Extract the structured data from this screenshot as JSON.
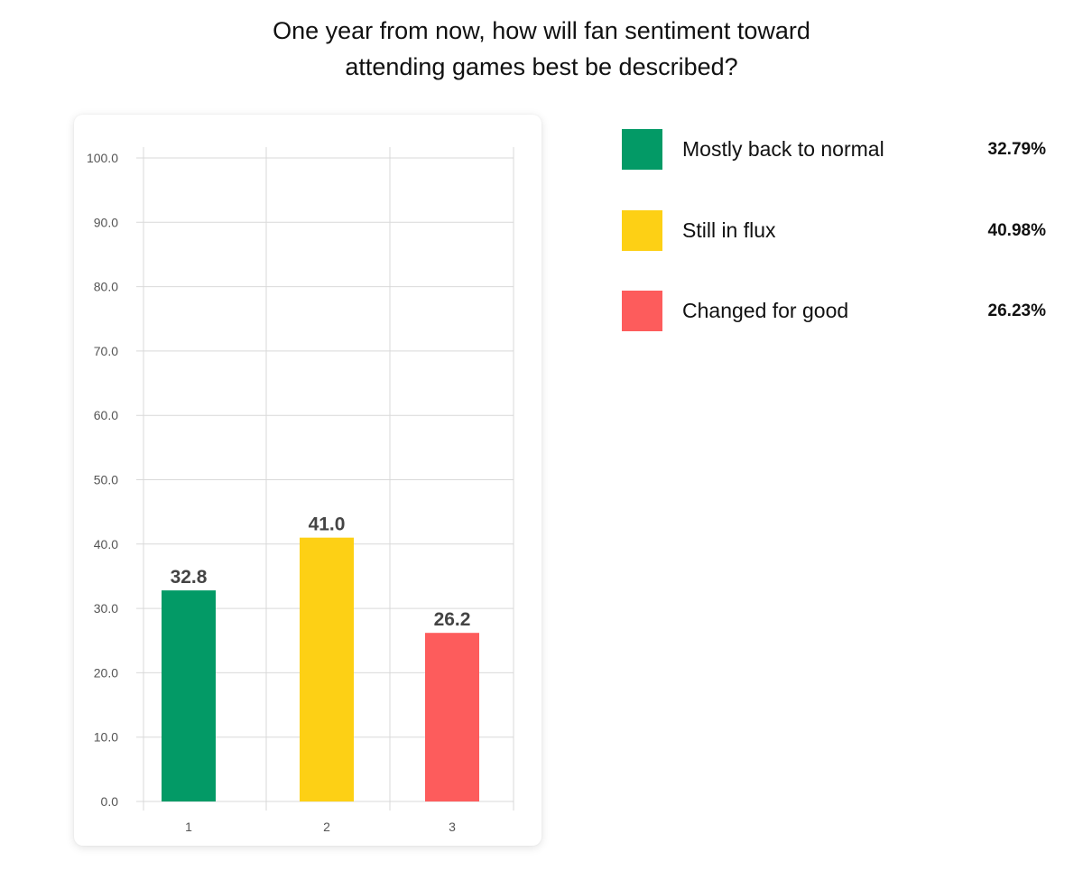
{
  "title": {
    "line1": "One year from now, how will fan sentiment toward",
    "line2": "attending games best be described?"
  },
  "legend": [
    {
      "label": "Mostly back to normal",
      "percent": "32.79%",
      "color": "#039A66"
    },
    {
      "label": "Still in flux",
      "percent": "40.98%",
      "color": "#FDD015"
    },
    {
      "label": "Changed for good",
      "percent": "26.23%",
      "color": "#FD5C5C"
    }
  ],
  "chart_data": {
    "type": "bar",
    "categories": [
      "1",
      "2",
      "3"
    ],
    "values": [
      32.8,
      41.0,
      26.2
    ],
    "value_labels": [
      "32.8",
      "41.0",
      "26.2"
    ],
    "colors": [
      "#039A66",
      "#FDD015",
      "#FD5C5C"
    ],
    "ylim": [
      0,
      100
    ],
    "yticks": [
      "0.0",
      "10.0",
      "20.0",
      "30.0",
      "40.0",
      "50.0",
      "60.0",
      "70.0",
      "80.0",
      "90.0",
      "100.0"
    ],
    "grid": true,
    "legend_position": "right"
  }
}
